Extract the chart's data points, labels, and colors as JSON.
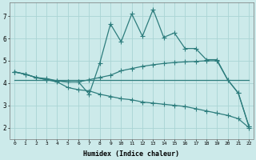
{
  "xlabel": "Humidex (Indice chaleur)",
  "background_color": "#cceaea",
  "grid_color": "#aad4d4",
  "line_color": "#2d7d7d",
  "xlim": [
    -0.5,
    22.4
  ],
  "ylim": [
    1.5,
    7.6
  ],
  "xticks": [
    0,
    1,
    2,
    3,
    4,
    5,
    6,
    7,
    8,
    9,
    10,
    11,
    12,
    13,
    14,
    15,
    16,
    17,
    18,
    19,
    20,
    21,
    22
  ],
  "yticks": [
    2,
    3,
    4,
    5,
    6,
    7
  ],
  "line_spiky_x": [
    0,
    1,
    2,
    3,
    4,
    5,
    6,
    7,
    8,
    9,
    10,
    11,
    12,
    13,
    14,
    15,
    16,
    17,
    18,
    19,
    20,
    21,
    22
  ],
  "line_spiky_y": [
    4.5,
    4.4,
    4.25,
    4.15,
    4.1,
    4.05,
    4.05,
    3.5,
    4.9,
    6.65,
    5.85,
    7.1,
    6.1,
    7.3,
    6.05,
    6.25,
    5.55,
    5.55,
    5.05,
    5.05,
    4.15,
    3.55,
    2.05
  ],
  "line_smooth_x": [
    0,
    1,
    2,
    3,
    4,
    5,
    6,
    7,
    8,
    9,
    10,
    11,
    12,
    13,
    14,
    15,
    16,
    17,
    18,
    19,
    20,
    21,
    22
  ],
  "line_smooth_y": [
    4.5,
    4.4,
    4.25,
    4.2,
    4.1,
    4.05,
    4.05,
    4.15,
    4.25,
    4.35,
    4.55,
    4.65,
    4.75,
    4.82,
    4.88,
    4.92,
    4.95,
    4.97,
    5.0,
    5.0,
    4.15,
    3.55,
    2.05
  ],
  "line_flat_x": [
    0,
    1,
    2,
    3,
    4,
    5,
    6,
    7,
    8,
    9,
    10,
    11,
    12,
    13,
    14,
    15,
    16,
    17,
    18,
    19,
    20,
    21,
    22
  ],
  "line_flat_y": [
    4.15,
    4.15,
    4.15,
    4.15,
    4.15,
    4.15,
    4.15,
    4.15,
    4.15,
    4.15,
    4.15,
    4.15,
    4.15,
    4.15,
    4.15,
    4.15,
    4.15,
    4.15,
    4.15,
    4.15,
    4.15,
    4.15,
    4.15
  ],
  "line_desc_x": [
    0,
    1,
    2,
    3,
    4,
    5,
    6,
    7,
    8,
    9,
    10,
    11,
    12,
    13,
    14,
    15,
    16,
    17,
    18,
    19,
    20,
    21,
    22
  ],
  "line_desc_y": [
    4.5,
    4.4,
    4.25,
    4.15,
    4.05,
    3.8,
    3.7,
    3.65,
    3.5,
    3.4,
    3.3,
    3.25,
    3.15,
    3.1,
    3.05,
    3.0,
    2.95,
    2.85,
    2.75,
    2.65,
    2.55,
    2.4,
    2.0
  ]
}
